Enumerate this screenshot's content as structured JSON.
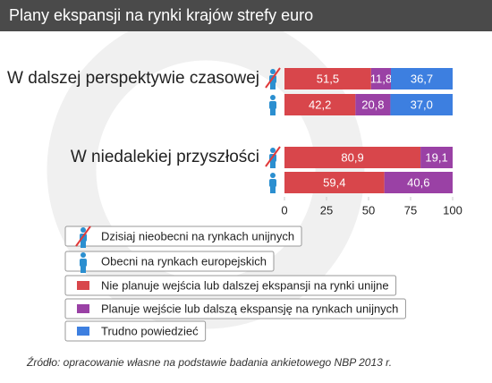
{
  "chart_data": {
    "type": "stacked-bar-horizontal",
    "title": "Plany ekspansji na rynki krajów strefy euro",
    "categories": [
      "W dalszej perspektywie czasowej",
      "W niedalekiej przyszłości"
    ],
    "subgroups": [
      "Dzisiaj nieobecni na rynkach unijnych",
      "Obecni na rynkach europejskich"
    ],
    "series": [
      {
        "name": "Nie planuje wejścia lub dalszej ekspansji na rynki unijne",
        "color": "#d8464b",
        "values": [
          [
            51.5,
            42.2
          ],
          [
            80.9,
            59.4
          ]
        ],
        "value_labels": [
          [
            "51,5",
            "42,2"
          ],
          [
            "80,9",
            "59,4"
          ]
        ]
      },
      {
        "name": "Planuje wejście lub dalszą ekspansję na rynkach unijnych",
        "color": "#9a41a5",
        "values": [
          [
            11.8,
            20.8
          ],
          [
            19.1,
            40.6
          ]
        ],
        "value_labels": [
          [
            "11,8",
            "20,8"
          ],
          [
            "19,1",
            "40,6"
          ]
        ]
      },
      {
        "name": "Trudno powiedzieć",
        "color": "#3d7fe0",
        "values": [
          [
            36.7,
            37.0
          ],
          [
            null,
            null
          ]
        ],
        "value_labels": [
          [
            "36,7",
            "37,0"
          ],
          [
            null,
            null
          ]
        ]
      }
    ],
    "xlim": [
      0,
      100
    ],
    "xticks": [
      0,
      25,
      50,
      75,
      100
    ],
    "source": "Źródło: opracowanie własne na podstawie badania ankietowego NBP 2013 r."
  }
}
